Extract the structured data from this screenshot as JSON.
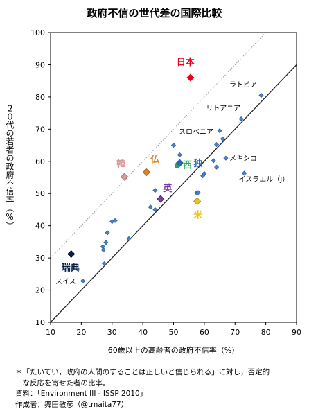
{
  "title": "政府不信の世代差の国際比較",
  "notes": [
    "＊「たいてい，政府の人間のすることは正しいと信じられる」に対し，否定的",
    "　な反応を寄せた者の比率。",
    "資料：「Environment III - ISSP 2010」",
    "作成者：舞田敏彦（@tmaita77）"
  ],
  "chart_data": {
    "type": "scatter",
    "title": "政府不信の世代差の国際比較",
    "xlabel": "60歳以上の高齢者の政府不信率（%）",
    "ylabel": "２０代の若者の政府不信率（%）",
    "xlim": [
      10,
      90
    ],
    "ylim": [
      10,
      100
    ],
    "xticks": [
      10,
      20,
      30,
      40,
      50,
      60,
      70,
      80,
      90
    ],
    "yticks": [
      10,
      20,
      30,
      40,
      50,
      60,
      70,
      80,
      90,
      100
    ],
    "grid": false,
    "reference_lines": [
      {
        "style": "solid",
        "slope": 1,
        "intercept": 0
      },
      {
        "style": "dotted",
        "slope": 1,
        "intercept": 20
      }
    ],
    "highlighted": [
      {
        "label": "日本",
        "x": 55.5,
        "y": 86,
        "color": "#e8001e",
        "marker_edge": "#e8001e"
      },
      {
        "label": "韓",
        "x": 34,
        "y": 55.2,
        "color": "#d99a98",
        "marker_edge": "#b06060"
      },
      {
        "label": "仏",
        "x": 41.2,
        "y": 56.6,
        "color": "#d9862e",
        "marker_edge": "#a25010"
      },
      {
        "label": "西",
        "x": 51.5,
        "y": 59,
        "color": "#2aa85a",
        "marker_edge": "#2aa85a"
      },
      {
        "label": "独",
        "x": 52,
        "y": 59.5,
        "color": "#2b66b6",
        "marker_edge": "#2b66b6"
      },
      {
        "label": "英",
        "x": 45.8,
        "y": 48.3,
        "color": "#7a3fa0",
        "marker_edge": "#3e1a62"
      },
      {
        "label": "米",
        "x": 57.7,
        "y": 47.6,
        "color": "#f0c419",
        "marker_edge": "#a58410"
      },
      {
        "label": "瑞典",
        "x": 16.7,
        "y": 31.2,
        "color": "#0c1f4a",
        "marker_edge": "#000000"
      }
    ],
    "labeled_points": [
      {
        "label": "ラトビア",
        "x": 78.5,
        "y": 80.5
      },
      {
        "label": "リトアニア",
        "x": 72,
        "y": 73.2
      },
      {
        "label": "スロベニア",
        "x": 65,
        "y": 69.5
      },
      {
        "label": "メキシコ",
        "x": 67,
        "y": 61
      },
      {
        "label": "イスラエル（J）",
        "x": 73,
        "y": 56.3
      },
      {
        "label": "スイス",
        "x": 20.5,
        "y": 22.8
      }
    ],
    "points": [
      {
        "x": 27.5,
        "y": 28.2
      },
      {
        "x": 27.2,
        "y": 32.5
      },
      {
        "x": 27,
        "y": 33.5
      },
      {
        "x": 28,
        "y": 34.8
      },
      {
        "x": 28.5,
        "y": 37.8
      },
      {
        "x": 30,
        "y": 41.3
      },
      {
        "x": 31,
        "y": 41.6
      },
      {
        "x": 35.5,
        "y": 36
      },
      {
        "x": 42.5,
        "y": 45.8
      },
      {
        "x": 44,
        "y": 45
      },
      {
        "x": 44,
        "y": 51
      },
      {
        "x": 50,
        "y": 65
      },
      {
        "x": 51,
        "y": 58.5
      },
      {
        "x": 52,
        "y": 62
      },
      {
        "x": 57.5,
        "y": 50.2
      },
      {
        "x": 58,
        "y": 50.3
      },
      {
        "x": 59.5,
        "y": 55.5
      },
      {
        "x": 60,
        "y": 56.2
      },
      {
        "x": 63,
        "y": 60.2
      },
      {
        "x": 64,
        "y": 58.2
      },
      {
        "x": 64,
        "y": 65.2
      },
      {
        "x": 66,
        "y": 67
      }
    ]
  }
}
